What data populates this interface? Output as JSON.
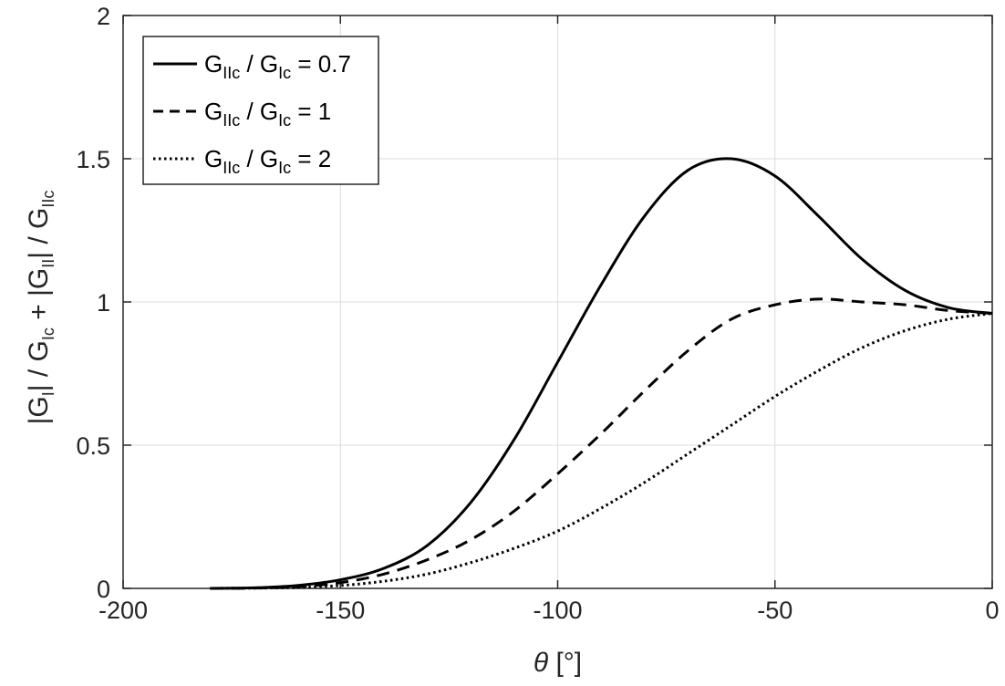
{
  "chart_data": {
    "type": "line",
    "xlabel": {
      "main": "θ",
      "unit": "[°]"
    },
    "ylabel": {
      "parts": [
        [
          "|G",
          false
        ],
        [
          "I",
          true
        ],
        [
          "| / G",
          false
        ],
        [
          "Ic",
          true
        ],
        [
          " + |G",
          false
        ],
        [
          "II",
          true
        ],
        [
          "| / G",
          false
        ],
        [
          "IIc",
          true
        ]
      ]
    },
    "xlim": [
      -200,
      0
    ],
    "ylim": [
      0,
      2
    ],
    "xticks": [
      -200,
      -150,
      -100,
      -50,
      0
    ],
    "xtick_labels": [
      "-200",
      "-150",
      "-100",
      "-50",
      "0"
    ],
    "yticks": [
      0,
      0.5,
      1,
      1.5,
      2
    ],
    "ytick_labels": [
      "0",
      "0.5",
      "1",
      "1.5",
      "2"
    ],
    "grid": true,
    "legend_position": "top-left",
    "series": [
      {
        "name": "GIIc / GIc = 0.7",
        "legend": [
          [
            "G",
            false
          ],
          [
            "IIc",
            true
          ],
          [
            " / G",
            false
          ],
          [
            "Ic",
            true
          ],
          [
            " = 0.7",
            false
          ]
        ],
        "style": "solid",
        "x": [
          -180,
          -170,
          -160,
          -150,
          -140,
          -130,
          -120,
          -110,
          -100,
          -90,
          -80,
          -70,
          -60,
          -50,
          -40,
          -30,
          -20,
          -10,
          0
        ],
        "y": [
          0,
          0.002,
          0.01,
          0.03,
          0.07,
          0.15,
          0.3,
          0.52,
          0.79,
          1.06,
          1.3,
          1.46,
          1.5,
          1.44,
          1.3,
          1.15,
          1.04,
          0.98,
          0.96
        ]
      },
      {
        "name": "GIIc / GIc = 1",
        "legend": [
          [
            "G",
            false
          ],
          [
            "IIc",
            true
          ],
          [
            " / G",
            false
          ],
          [
            "Ic",
            true
          ],
          [
            " = 1",
            false
          ]
        ],
        "style": "dashed",
        "x": [
          -180,
          -170,
          -160,
          -150,
          -140,
          -130,
          -120,
          -110,
          -100,
          -90,
          -80,
          -70,
          -60,
          -50,
          -40,
          -30,
          -20,
          -10,
          0
        ],
        "y": [
          0,
          0.001,
          0.006,
          0.02,
          0.05,
          0.1,
          0.17,
          0.27,
          0.4,
          0.54,
          0.69,
          0.83,
          0.94,
          0.99,
          1.01,
          1.0,
          0.99,
          0.97,
          0.96
        ]
      },
      {
        "name": "GIIc / GIc = 2",
        "legend": [
          [
            "G",
            false
          ],
          [
            "IIc",
            true
          ],
          [
            " / G",
            false
          ],
          [
            "Ic",
            true
          ],
          [
            " = 2",
            false
          ]
        ],
        "style": "dotted",
        "x": [
          -180,
          -170,
          -160,
          -150,
          -140,
          -130,
          -120,
          -110,
          -100,
          -90,
          -80,
          -70,
          -60,
          -50,
          -40,
          -30,
          -20,
          -10,
          0
        ],
        "y": [
          0,
          0.001,
          0.003,
          0.01,
          0.025,
          0.05,
          0.09,
          0.14,
          0.2,
          0.28,
          0.37,
          0.47,
          0.57,
          0.67,
          0.76,
          0.84,
          0.9,
          0.94,
          0.96
        ]
      }
    ]
  }
}
